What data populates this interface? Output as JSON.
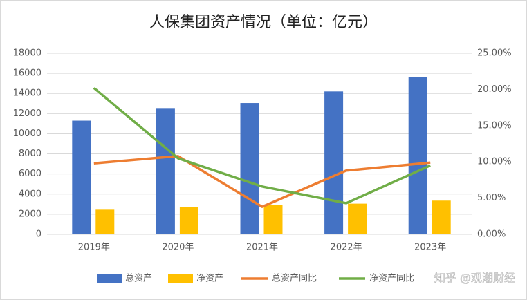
{
  "chart_data": {
    "type": "bar-line",
    "title": "人保集团资产情况（单位：亿元）",
    "categories": [
      "2019年",
      "2020年",
      "2021年",
      "2022年",
      "2023年"
    ],
    "series": [
      {
        "name": "总资产",
        "color": "#4472c4",
        "type": "bar",
        "values": [
          11300,
          12550,
          13050,
          14200,
          15600
        ]
      },
      {
        "name": "净资产",
        "color": "#ffc000",
        "type": "bar",
        "values": [
          2450,
          2700,
          2900,
          3050,
          3350
        ]
      },
      {
        "name": "总资产同比",
        "color": "#ed7d31",
        "type": "line",
        "axis": "y2",
        "values": [
          9.8,
          10.8,
          3.8,
          8.8,
          9.9
        ]
      },
      {
        "name": "净资产同比",
        "color": "#70ad47",
        "type": "line",
        "axis": "y2",
        "values": [
          20.2,
          10.5,
          6.6,
          4.3,
          9.5
        ]
      }
    ],
    "ylim": [
      0,
      18000
    ],
    "yticks": [
      0,
      2000,
      4000,
      6000,
      8000,
      10000,
      12000,
      14000,
      16000,
      18000
    ],
    "y2lim": [
      0,
      25
    ],
    "y2ticks": [
      {
        "value": 0,
        "label": "0.00%"
      },
      {
        "value": 5,
        "label": "5.00%"
      },
      {
        "value": 10,
        "label": "10.00%"
      },
      {
        "value": 15,
        "label": "15.00%"
      },
      {
        "value": 20,
        "label": "20.00%"
      },
      {
        "value": 25,
        "label": "25.00%"
      }
    ],
    "grid": true,
    "legend": "bottom",
    "watermark": "知乎 @观潮财经"
  }
}
